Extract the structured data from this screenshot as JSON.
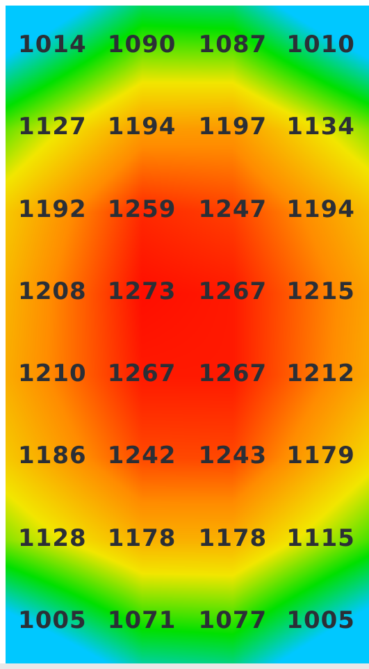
{
  "chart_data": {
    "type": "heatmap",
    "title": "",
    "rows": 8,
    "cols": 4,
    "values": [
      [
        1014,
        1090,
        1087,
        1010
      ],
      [
        1127,
        1194,
        1197,
        1134
      ],
      [
        1192,
        1259,
        1247,
        1194
      ],
      [
        1208,
        1273,
        1267,
        1215
      ],
      [
        1210,
        1267,
        1267,
        1212
      ],
      [
        1186,
        1242,
        1243,
        1179
      ],
      [
        1128,
        1178,
        1178,
        1115
      ],
      [
        1005,
        1071,
        1077,
        1005
      ]
    ],
    "color_scale": {
      "min": 990,
      "max": 1280,
      "stops": [
        "#00c8ff",
        "#00e000",
        "#f2e600",
        "#ff8c00",
        "#ff0000"
      ]
    },
    "label_color": "#2b2f36",
    "bottom_edge_color": "#e8e8e8"
  }
}
